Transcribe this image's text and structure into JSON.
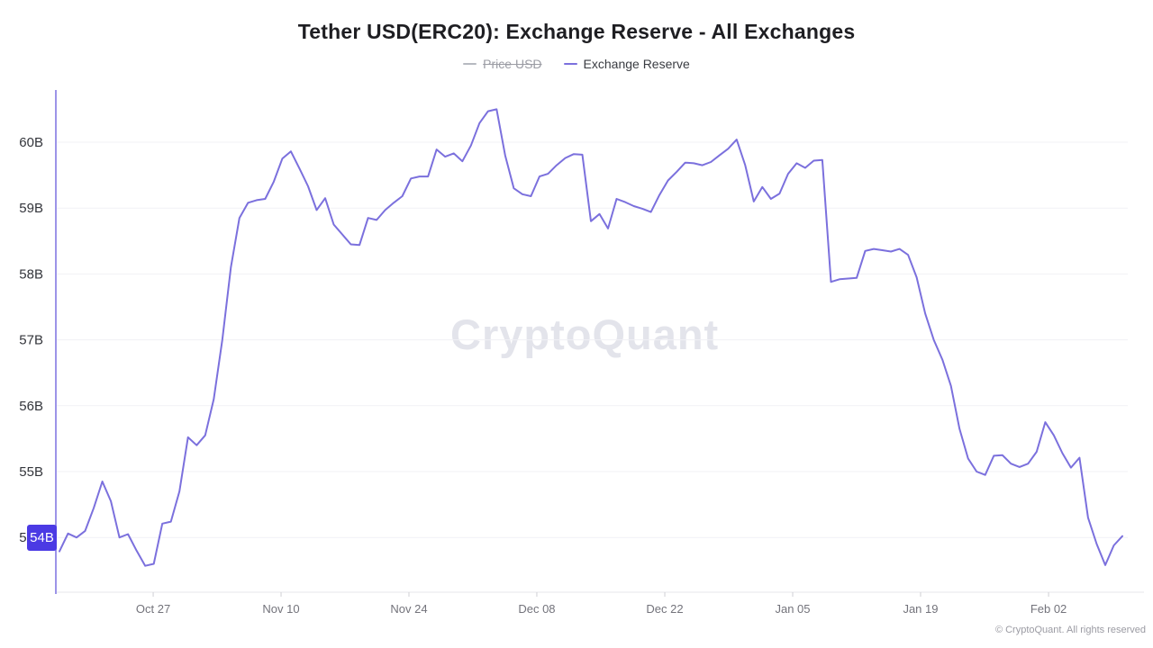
{
  "header": {
    "title": "Tether USD(ERC20): Exchange Reserve - All Exchanges",
    "legend": [
      {
        "label": "Price USD",
        "disabled": true,
        "color": "#b6b9c0"
      },
      {
        "label": "Exchange Reserve",
        "disabled": false,
        "color": "#7b70dd"
      }
    ]
  },
  "watermark": "CryptoQuant",
  "footer": {
    "copyright": "© CryptoQuant. All rights reserved"
  },
  "colors": {
    "line": "#7b70dd",
    "y_axis_line": "#9c94e8",
    "x_axis_line": "#e7e7eb",
    "grid": "#f1f1f5",
    "tick": "#cfcfd4",
    "y_label": "#33353b",
    "x_label": "#73737b",
    "badge_bg": "#4b3ae4"
  },
  "chart_data": {
    "type": "line",
    "title": "Tether USD(ERC20): Exchange Reserve - All Exchanges",
    "xlabel": "",
    "ylabel": "",
    "unit": "B",
    "grid": "horizontal",
    "legend_position": "top center",
    "ylim": [
      53.2,
      60.8
    ],
    "last_value_label": "54B",
    "last_value": 54.0,
    "y_ticks": [
      {
        "label": "60B",
        "value": 60
      },
      {
        "label": "59B",
        "value": 59
      },
      {
        "label": "58B",
        "value": 58
      },
      {
        "label": "57B",
        "value": 57
      },
      {
        "label": "56B",
        "value": 56
      },
      {
        "label": "55B",
        "value": 55
      },
      {
        "label": "54B",
        "value": 54
      }
    ],
    "x_ticks": [
      {
        "label": "Oct 27",
        "f": 0.0908
      },
      {
        "label": "Nov 10",
        "f": 0.2101
      },
      {
        "label": "Nov 24",
        "f": 0.3294
      },
      {
        "label": "Dec 08",
        "f": 0.4487
      },
      {
        "label": "Dec 22",
        "f": 0.5681
      },
      {
        "label": "Jan 05",
        "f": 0.6874
      },
      {
        "label": "Jan 19",
        "f": 0.8067
      },
      {
        "label": "Feb 02",
        "f": 0.9261
      }
    ],
    "series": [
      {
        "name": "Exchange Reserve",
        "color": "#7b70dd",
        "values": [
          53.79,
          54.06,
          54.0,
          54.1,
          54.45,
          54.85,
          54.55,
          54.0,
          54.05,
          53.8,
          53.57,
          53.6,
          54.21,
          54.24,
          54.7,
          55.52,
          55.4,
          55.55,
          56.1,
          57.0,
          58.1,
          58.85,
          59.08,
          59.12,
          59.14,
          59.4,
          59.75,
          59.86,
          59.6,
          59.33,
          58.97,
          59.15,
          58.75,
          58.6,
          58.45,
          58.44,
          58.85,
          58.82,
          58.97,
          59.08,
          59.18,
          59.45,
          59.48,
          59.48,
          59.89,
          59.78,
          59.83,
          59.71,
          59.95,
          60.29,
          60.47,
          60.5,
          59.8,
          59.3,
          59.21,
          59.18,
          59.48,
          59.52,
          59.65,
          59.76,
          59.82,
          59.81,
          58.8,
          58.91,
          58.69,
          59.14,
          59.09,
          59.03,
          58.99,
          58.94,
          59.2,
          59.42,
          59.55,
          59.69,
          59.68,
          59.65,
          59.7,
          59.8,
          59.9,
          60.04,
          59.65,
          59.1,
          59.32,
          59.14,
          59.22,
          59.52,
          59.68,
          59.61,
          59.72,
          59.73,
          57.88,
          57.92,
          57.93,
          57.94,
          58.35,
          58.38,
          58.36,
          58.34,
          58.38,
          58.29,
          57.95,
          57.4,
          57.0,
          56.7,
          56.3,
          55.65,
          55.2,
          55.0,
          54.95,
          55.24,
          55.25,
          55.12,
          55.07,
          55.12,
          55.3,
          55.75,
          55.55,
          55.28,
          55.06,
          55.21,
          54.3,
          53.9,
          53.58,
          53.88,
          54.02
        ]
      },
      {
        "name": "Price USD",
        "color": "#b6b9c0",
        "values": []
      }
    ]
  }
}
